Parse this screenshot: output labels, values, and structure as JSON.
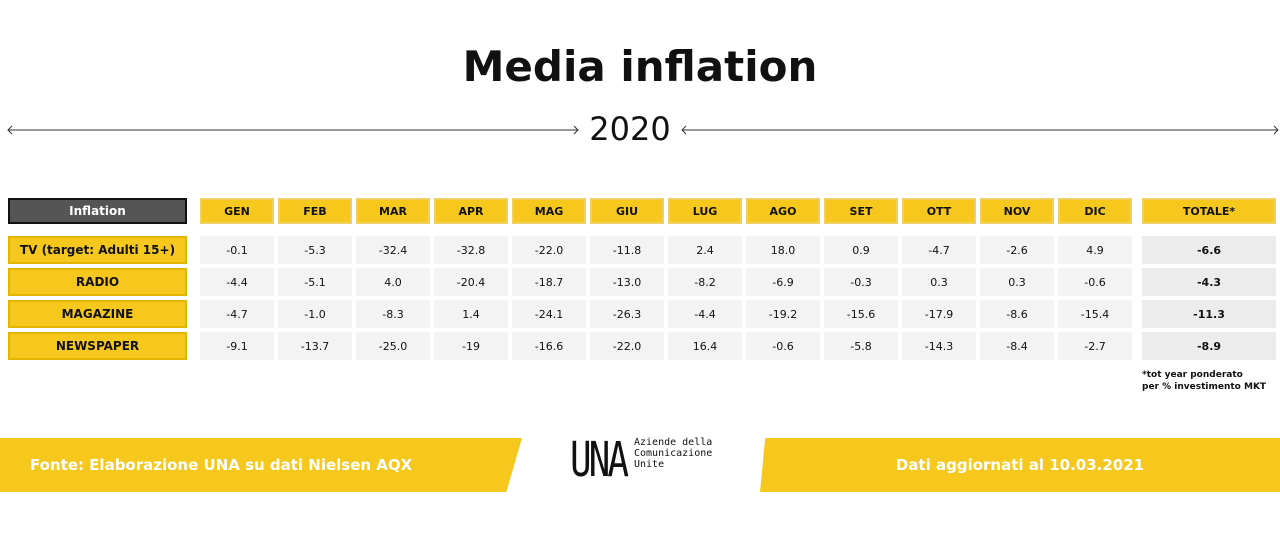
{
  "title": "Media inflation",
  "year": "2020",
  "table": {
    "corner": "Inflation",
    "columns": [
      "GEN",
      "FEB",
      "MAR",
      "APR",
      "MAG",
      "GIU",
      "LUG",
      "AGO",
      "SET",
      "OTT",
      "NOV",
      "DIC"
    ],
    "total_header": "TOTALE*",
    "rows": [
      {
        "label": "TV (target: Adulti 15+)",
        "values": [
          "-0.1",
          "-5.3",
          "-32.4",
          "-32.8",
          "-22.0",
          "-11.8",
          "2.4",
          "18.0",
          "0.9",
          "-4.7",
          "-2.6",
          "4.9"
        ],
        "total": "-6.6"
      },
      {
        "label": "RADIO",
        "values": [
          "-4.4",
          "-5.1",
          "4.0",
          "-20.4",
          "-18.7",
          "-13.0",
          "-8.2",
          "-6.9",
          "-0.3",
          "0.3",
          "0.3",
          "-0.6"
        ],
        "total": "-4.3"
      },
      {
        "label": "MAGAZINE",
        "values": [
          "-4.7",
          "-1.0",
          "-8.3",
          "1.4",
          "-24.1",
          "-26.3",
          "-4.4",
          "-19.2",
          "-15.6",
          "-17.9",
          "-8.6",
          "-15.4"
        ],
        "total": "-11.3"
      },
      {
        "label": "NEWSPAPER",
        "values": [
          "-9.1",
          "-13.7",
          "-25.0",
          "-19",
          "-16.6",
          "-22.0",
          "16.4",
          "-0.6",
          "-5.8",
          "-14.3",
          "-8.4",
          "-2.7"
        ],
        "total": "-8.9"
      }
    ],
    "note": [
      "*tot year ponderato",
      "per % investimento MKT"
    ]
  },
  "footer": {
    "source": "Fonte: Elaborazione UNA su dati Nielsen AQX",
    "logo": "UNA",
    "logo_text": [
      "Aziende della",
      "Comunicazione",
      "Unite"
    ],
    "updated": "Dati aggiornati al 10.03.2021"
  }
}
